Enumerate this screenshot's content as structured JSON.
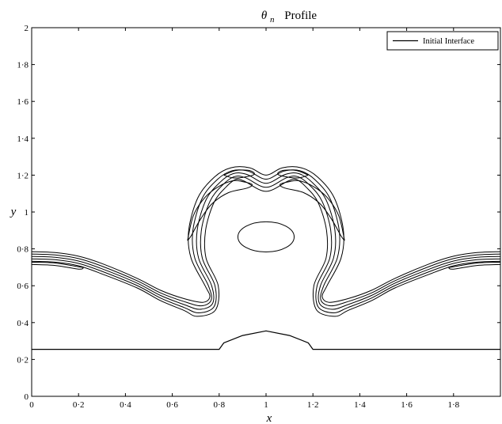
{
  "chart_data": {
    "type": "line",
    "title": {
      "symbol": "θ",
      "subscript": "n",
      "text": "Profile"
    },
    "xlabel": "x",
    "ylabel": "y",
    "xlim": [
      0,
      2
    ],
    "ylim": [
      0,
      2
    ],
    "x_ticks": [
      {
        "value": 0,
        "label": "0"
      },
      {
        "value": 0.2,
        "label": "0·2"
      },
      {
        "value": 0.4,
        "label": "0·4"
      },
      {
        "value": 0.6,
        "label": "0·6"
      },
      {
        "value": 0.8,
        "label": "0·8"
      },
      {
        "value": 1.0,
        "label": "1"
      },
      {
        "value": 1.2,
        "label": "1·2"
      },
      {
        "value": 1.4,
        "label": "1·4"
      },
      {
        "value": 1.6,
        "label": "1·6"
      },
      {
        "value": 1.8,
        "label": "1·8"
      }
    ],
    "y_ticks": [
      {
        "value": 0,
        "label": "0"
      },
      {
        "value": 0.2,
        "label": "0·2"
      },
      {
        "value": 0.4,
        "label": "0·4"
      },
      {
        "value": 0.6,
        "label": "0·6"
      },
      {
        "value": 0.8,
        "label": "0·8"
      },
      {
        "value": 1.0,
        "label": "1"
      },
      {
        "value": 1.2,
        "label": "1·2"
      },
      {
        "value": 1.4,
        "label": "1·4"
      },
      {
        "value": 1.6,
        "label": "1·6"
      },
      {
        "value": 1.8,
        "label": "1·8"
      },
      {
        "value": 2.0,
        "label": "2"
      }
    ],
    "grid": false,
    "legend": {
      "position": "top-right",
      "entries": [
        "Initial Interface"
      ]
    },
    "series": [
      {
        "name": "Initial Interface",
        "kind": "line",
        "points": [
          [
            0,
            0.255
          ],
          [
            0.8,
            0.255
          ],
          [
            0.82,
            0.29
          ],
          [
            0.9,
            0.33
          ],
          [
            1.0,
            0.355
          ],
          [
            1.1,
            0.33
          ],
          [
            1.18,
            0.29
          ],
          [
            1.2,
            0.255
          ],
          [
            2.0,
            0.255
          ]
        ]
      },
      {
        "kind": "contour",
        "points": [
          [
            0,
            0.785
          ],
          [
            0.1,
            0.78
          ],
          [
            0.2,
            0.76
          ],
          [
            0.3,
            0.72
          ],
          [
            0.45,
            0.64
          ],
          [
            0.55,
            0.575
          ],
          [
            0.65,
            0.53
          ],
          [
            0.73,
            0.51
          ],
          [
            0.76,
            0.54
          ],
          [
            0.74,
            0.6
          ],
          [
            0.68,
            0.75
          ],
          [
            0.67,
            0.9
          ],
          [
            0.71,
            1.08
          ],
          [
            0.78,
            1.19
          ],
          [
            0.85,
            1.24
          ],
          [
            0.93,
            1.24
          ],
          [
            1.0,
            1.2
          ],
          [
            1.07,
            1.24
          ],
          [
            1.15,
            1.24
          ],
          [
            1.22,
            1.19
          ],
          [
            1.29,
            1.08
          ],
          [
            1.33,
            0.9
          ],
          [
            1.32,
            0.75
          ],
          [
            1.26,
            0.6
          ],
          [
            1.24,
            0.54
          ],
          [
            1.27,
            0.51
          ],
          [
            1.35,
            0.53
          ],
          [
            1.45,
            0.575
          ],
          [
            1.55,
            0.64
          ],
          [
            1.7,
            0.72
          ],
          [
            1.8,
            0.76
          ],
          [
            1.9,
            0.78
          ],
          [
            2.0,
            0.785
          ]
        ]
      },
      {
        "kind": "contour",
        "points": [
          [
            0,
            0.772
          ],
          [
            0.1,
            0.767
          ],
          [
            0.2,
            0.747
          ],
          [
            0.3,
            0.706
          ],
          [
            0.45,
            0.627
          ],
          [
            0.55,
            0.561
          ],
          [
            0.65,
            0.514
          ],
          [
            0.724,
            0.491
          ],
          [
            0.766,
            0.522
          ],
          [
            0.754,
            0.6
          ],
          [
            0.696,
            0.75
          ],
          [
            0.688,
            0.9
          ],
          [
            0.727,
            1.073
          ],
          [
            0.792,
            1.176
          ],
          [
            0.855,
            1.224
          ],
          [
            0.924,
            1.222
          ],
          [
            1.0,
            1.178
          ],
          [
            1.076,
            1.222
          ],
          [
            1.145,
            1.224
          ],
          [
            1.208,
            1.176
          ],
          [
            1.273,
            1.073
          ],
          [
            1.312,
            0.9
          ],
          [
            1.304,
            0.75
          ],
          [
            1.246,
            0.6
          ],
          [
            1.234,
            0.522
          ],
          [
            1.276,
            0.491
          ],
          [
            1.35,
            0.514
          ],
          [
            1.45,
            0.561
          ],
          [
            1.55,
            0.627
          ],
          [
            1.7,
            0.706
          ],
          [
            1.8,
            0.747
          ],
          [
            1.9,
            0.767
          ],
          [
            2.0,
            0.772
          ]
        ]
      },
      {
        "kind": "contour",
        "points": [
          [
            0,
            0.759
          ],
          [
            0.1,
            0.754
          ],
          [
            0.2,
            0.734
          ],
          [
            0.3,
            0.692
          ],
          [
            0.45,
            0.614
          ],
          [
            0.55,
            0.547
          ],
          [
            0.65,
            0.498
          ],
          [
            0.718,
            0.472
          ],
          [
            0.772,
            0.504
          ],
          [
            0.768,
            0.6
          ],
          [
            0.712,
            0.75
          ],
          [
            0.706,
            0.9
          ],
          [
            0.744,
            1.066
          ],
          [
            0.804,
            1.162
          ],
          [
            0.86,
            1.208
          ],
          [
            0.918,
            1.204
          ],
          [
            1.0,
            1.156
          ],
          [
            1.082,
            1.204
          ],
          [
            1.14,
            1.208
          ],
          [
            1.196,
            1.162
          ],
          [
            1.256,
            1.066
          ],
          [
            1.294,
            0.9
          ],
          [
            1.288,
            0.75
          ],
          [
            1.232,
            0.6
          ],
          [
            1.228,
            0.504
          ],
          [
            1.282,
            0.472
          ],
          [
            1.35,
            0.498
          ],
          [
            1.45,
            0.547
          ],
          [
            1.55,
            0.614
          ],
          [
            1.7,
            0.692
          ],
          [
            1.8,
            0.734
          ],
          [
            1.9,
            0.754
          ],
          [
            2.0,
            0.759
          ]
        ]
      },
      {
        "kind": "contour",
        "points": [
          [
            0,
            0.746
          ],
          [
            0.1,
            0.741
          ],
          [
            0.2,
            0.721
          ],
          [
            0.3,
            0.678
          ],
          [
            0.45,
            0.601
          ],
          [
            0.55,
            0.533
          ],
          [
            0.65,
            0.482
          ],
          [
            0.712,
            0.453
          ],
          [
            0.778,
            0.486
          ],
          [
            0.782,
            0.6
          ],
          [
            0.728,
            0.75
          ],
          [
            0.724,
            0.9
          ],
          [
            0.761,
            1.059
          ],
          [
            0.816,
            1.148
          ],
          [
            0.865,
            1.192
          ],
          [
            0.912,
            1.186
          ],
          [
            1.0,
            1.134
          ],
          [
            1.088,
            1.186
          ],
          [
            1.135,
            1.192
          ],
          [
            1.184,
            1.148
          ],
          [
            1.239,
            1.059
          ],
          [
            1.276,
            0.9
          ],
          [
            1.272,
            0.75
          ],
          [
            1.218,
            0.6
          ],
          [
            1.222,
            0.486
          ],
          [
            1.288,
            0.453
          ],
          [
            1.35,
            0.482
          ],
          [
            1.45,
            0.533
          ],
          [
            1.55,
            0.601
          ],
          [
            1.7,
            0.678
          ],
          [
            1.8,
            0.721
          ],
          [
            1.9,
            0.741
          ],
          [
            2.0,
            0.746
          ]
        ]
      },
      {
        "kind": "contour",
        "points": [
          [
            0,
            0.733
          ],
          [
            0.1,
            0.728
          ],
          [
            0.2,
            0.708
          ],
          [
            0.3,
            0.664
          ],
          [
            0.45,
            0.588
          ],
          [
            0.55,
            0.519
          ],
          [
            0.65,
            0.466
          ],
          [
            0.706,
            0.434
          ],
          [
            0.784,
            0.468
          ],
          [
            0.796,
            0.6
          ],
          [
            0.744,
            0.75
          ],
          [
            0.742,
            0.9
          ],
          [
            0.778,
            1.052
          ],
          [
            0.828,
            1.134
          ],
          [
            0.87,
            1.176
          ],
          [
            0.906,
            1.168
          ],
          [
            1.0,
            1.112
          ],
          [
            1.094,
            1.168
          ],
          [
            1.13,
            1.176
          ],
          [
            1.172,
            1.134
          ],
          [
            1.222,
            1.052
          ],
          [
            1.258,
            0.9
          ],
          [
            1.256,
            0.75
          ],
          [
            1.204,
            0.6
          ],
          [
            1.216,
            0.468
          ],
          [
            1.294,
            0.434
          ],
          [
            1.35,
            0.466
          ],
          [
            1.45,
            0.519
          ],
          [
            1.55,
            0.588
          ],
          [
            1.7,
            0.664
          ],
          [
            1.8,
            0.708
          ],
          [
            1.9,
            0.728
          ],
          [
            2.0,
            0.733
          ]
        ]
      },
      {
        "kind": "contour",
        "points": [
          [
            0,
            0.715
          ],
          [
            0.1,
            0.71
          ],
          [
            0.2,
            0.69
          ],
          [
            0.22,
            0.698
          ],
          [
            0.2,
            0.703
          ],
          [
            0.1,
            0.723
          ],
          [
            0,
            0.728
          ]
        ]
      },
      {
        "kind": "contour",
        "points": [
          [
            2.0,
            0.715
          ],
          [
            1.9,
            0.71
          ],
          [
            1.8,
            0.69
          ],
          [
            1.78,
            0.698
          ],
          [
            1.8,
            0.703
          ],
          [
            1.9,
            0.723
          ],
          [
            2.0,
            0.728
          ]
        ]
      },
      {
        "kind": "contour",
        "points": [
          [
            0.665,
            0.845
          ],
          [
            0.69,
            0.98
          ],
          [
            0.74,
            1.08
          ],
          [
            0.8,
            1.14
          ],
          [
            0.86,
            1.17
          ],
          [
            0.9,
            1.165
          ],
          [
            0.94,
            1.15
          ],
          [
            0.92,
            1.13
          ],
          [
            0.84,
            1.105
          ],
          [
            0.77,
            1.045
          ],
          [
            0.72,
            0.96
          ],
          [
            0.68,
            0.87
          ],
          [
            0.665,
            0.845
          ]
        ]
      },
      {
        "kind": "contour",
        "points": [
          [
            1.335,
            0.845
          ],
          [
            1.31,
            0.98
          ],
          [
            1.26,
            1.08
          ],
          [
            1.2,
            1.14
          ],
          [
            1.14,
            1.17
          ],
          [
            1.1,
            1.165
          ],
          [
            1.06,
            1.15
          ],
          [
            1.08,
            1.13
          ],
          [
            1.16,
            1.105
          ],
          [
            1.23,
            1.045
          ],
          [
            1.28,
            0.96
          ],
          [
            1.32,
            0.87
          ],
          [
            1.335,
            0.845
          ]
        ]
      },
      {
        "kind": "contour",
        "points": [
          [
            0.82,
            1.2
          ],
          [
            0.87,
            1.225
          ],
          [
            0.93,
            1.225
          ],
          [
            0.95,
            1.205
          ],
          [
            0.91,
            1.19
          ],
          [
            0.86,
            1.185
          ],
          [
            0.82,
            1.2
          ]
        ]
      },
      {
        "kind": "contour",
        "points": [
          [
            1.18,
            1.2
          ],
          [
            1.13,
            1.225
          ],
          [
            1.07,
            1.225
          ],
          [
            1.05,
            1.205
          ],
          [
            1.09,
            1.19
          ],
          [
            1.14,
            1.185
          ],
          [
            1.18,
            1.2
          ]
        ]
      },
      {
        "kind": "closed-contour",
        "ellipse": {
          "cx": 1.0,
          "cy": 0.865,
          "rx": 0.12,
          "ry": 0.082
        }
      }
    ]
  }
}
